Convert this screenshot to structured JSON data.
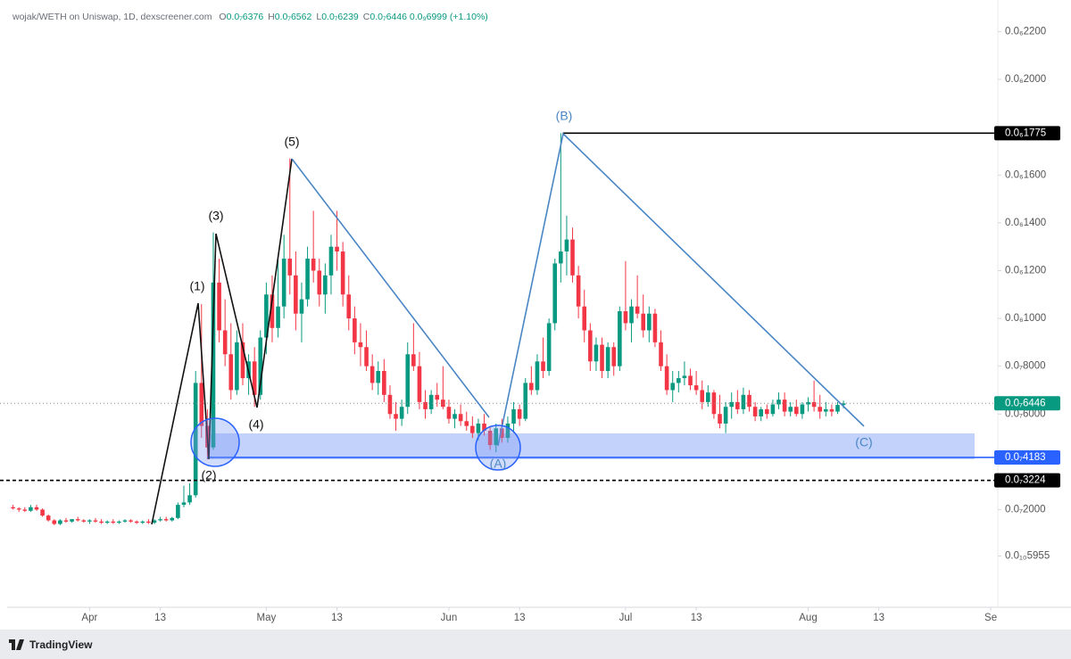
{
  "header": {
    "symbol": "wojak/WETH on Uniswap, 1D, dexscreener.com",
    "ohlc": [
      {
        "key": "O",
        "value": "0.0₇6376"
      },
      {
        "key": "H",
        "value": "0.0₇6562"
      },
      {
        "key": "L",
        "value": "0.0₇6239"
      },
      {
        "key": "C",
        "value": "0.0₇6446"
      }
    ],
    "change": "0.0₉6999 (+1.10%)"
  },
  "footer": {
    "brand": "TradingView"
  },
  "chart_data": {
    "type": "candlestick",
    "up_color": "#089981",
    "down_color": "#f23645",
    "xlim": [
      -14,
      154.2
    ],
    "xticks": [
      {
        "value": 0,
        "label": "Apr"
      },
      {
        "value": 12,
        "label": "13"
      },
      {
        "value": 30,
        "label": "May"
      },
      {
        "value": 42,
        "label": "13"
      },
      {
        "value": 61,
        "label": "Jun"
      },
      {
        "value": 73,
        "label": "13"
      },
      {
        "value": 91,
        "label": "Jul"
      },
      {
        "value": 103,
        "label": "13"
      },
      {
        "value": 122,
        "label": "Aug"
      },
      {
        "value": 134,
        "label": "13"
      },
      {
        "value": 153,
        "label": "Se"
      }
    ],
    "ylim": [
      -2.05e-08,
      2.295e-07
    ],
    "yticks": [
      {
        "value": 2.2e-07,
        "label": "0.0₆2200"
      },
      {
        "value": 2e-07,
        "label": "0.0₆2000"
      },
      {
        "value": 1.6e-07,
        "label": "0.0₆1600"
      },
      {
        "value": 1.4e-07,
        "label": "0.0₆1400"
      },
      {
        "value": 1.2e-07,
        "label": "0.0₆1200"
      },
      {
        "value": 1e-07,
        "label": "0.0₆1000"
      },
      {
        "value": 8e-08,
        "label": "0.0₇8000"
      },
      {
        "value": 6e-08,
        "label": "0.0₇6000"
      },
      {
        "value": 2e-08,
        "label": "0.0₇2000"
      },
      {
        "value": 5.955e-10,
        "label": "0.0₁₀5955"
      }
    ],
    "price_lines": [
      {
        "value": 1.775e-07,
        "label": "0.0₆1775",
        "color": "#000000",
        "style": "solid"
      },
      {
        "value": 6.446e-08,
        "label": "0.0₇6446",
        "color": "#089981",
        "style": "dotted"
      },
      {
        "value": 4.183e-08,
        "label": "0.0₇4183",
        "color": "#2962ff",
        "style": "solid"
      },
      {
        "value": 3.224e-08,
        "label": "0.0₇3224",
        "color": "#000000",
        "style": "dashed"
      }
    ],
    "annotations": {
      "w1": "(1)",
      "w2": "(2)",
      "w3": "(3)",
      "w4": "(4)",
      "w5": "(5)",
      "wA": "(A)",
      "wB": "(B)",
      "wC": "(C)"
    },
    "x": [
      -13,
      -12,
      -11,
      -10,
      -9,
      -8,
      -7,
      -6,
      -5,
      -4,
      -3,
      -2,
      -1,
      0,
      1,
      2,
      3,
      4,
      5,
      6,
      7,
      8,
      9,
      10,
      11,
      12,
      13,
      14,
      15,
      16,
      17,
      18,
      19,
      20,
      21,
      22,
      23,
      24,
      25,
      26,
      27,
      28,
      29,
      30,
      31,
      32,
      33,
      34,
      35,
      36,
      37,
      38,
      39,
      40,
      41,
      42,
      43,
      44,
      45,
      46,
      47,
      48,
      49,
      50,
      51,
      52,
      53,
      54,
      55,
      56,
      57,
      58,
      59,
      60,
      61,
      62,
      63,
      64,
      65,
      66,
      67,
      68,
      69,
      70,
      71,
      72,
      73,
      74,
      75,
      76,
      77,
      78,
      79,
      80,
      81,
      82,
      83,
      84,
      85,
      86,
      87,
      88,
      89,
      90,
      91,
      92,
      93,
      94,
      95,
      96,
      97,
      98,
      99,
      100,
      101,
      102,
      103,
      104,
      105,
      106,
      107,
      108,
      109,
      110,
      111,
      112,
      113,
      114,
      115,
      116,
      117,
      118,
      119,
      120,
      121,
      122,
      123,
      124,
      125,
      126,
      127,
      128
    ],
    "open": [
      2.1e-08,
      2.05e-08,
      2e-08,
      1.95e-08,
      2.1e-08,
      2e-08,
      1.75e-08,
      1.55e-08,
      1.4e-08,
      1.55e-08,
      1.5e-08,
      1.6e-08,
      1.55e-08,
      1.5e-08,
      1.55e-08,
      1.5e-08,
      1.45e-08,
      1.5e-08,
      1.45e-08,
      1.5e-08,
      1.55e-08,
      1.5e-08,
      1.45e-08,
      1.5e-08,
      1.45e-08,
      1.55e-08,
      1.6e-08,
      1.55e-08,
      1.65e-08,
      2.2e-08,
      2.3e-08,
      2.6e-08,
      7.3e-08,
      5.5e-08,
      4.6e-08,
      1.15e-07,
      9.5e-08,
      8.5e-08,
      7e-08,
      9e-08,
      7.5e-08,
      8.2e-08,
      6.8e-08,
      9.2e-08,
      1.1e-07,
      9.6e-08,
      1.05e-07,
      1.25e-07,
      1.18e-07,
      1.02e-07,
      1.08e-07,
      1.25e-07,
      1.2e-07,
      1.1e-07,
      1.18e-07,
      1.3e-07,
      1.28e-07,
      1.1e-07,
      1e-07,
      9e-08,
      8.8e-08,
      8e-08,
      7.3e-08,
      7.8e-08,
      6.8e-08,
      6e-08,
      5.8e-08,
      6.3e-08,
      8.5e-08,
      8e-08,
      6.5e-08,
      6.2e-08,
      6.8e-08,
      6.6e-08,
      6.3e-08,
      5.8e-08,
      6e-08,
      5.7e-08,
      5.5e-08,
      5.2e-08,
      5.6e-08,
      5.3e-08,
      4.7e-08,
      5.4e-08,
      5e-08,
      5.6e-08,
      6.2e-08,
      5.8e-08,
      7.3e-08,
      7e-08,
      8.2e-08,
      7.8e-08,
      9.8e-08,
      1.23e-07,
      1.28e-07,
      1.33e-07,
      1.18e-07,
      1.05e-07,
      9.5e-08,
      8.2e-08,
      8.9e-08,
      7.8e-08,
      8.8e-08,
      8e-08,
      1.03e-07,
      9.8e-08,
      1.05e-07,
      1.02e-07,
      9.5e-08,
      1.02e-07,
      9e-08,
      8e-08,
      7e-08,
      7.3e-08,
      7.5e-08,
      7.6e-08,
      7.2e-08,
      7e-08,
      6.5e-08,
      6.9e-08,
      6e-08,
      5.6e-08,
      6.3e-08,
      6.5e-08,
      6.2e-08,
      6.8e-08,
      6.3e-08,
      5.9e-08,
      6.2e-08,
      6e-08,
      6.4e-08,
      6.6e-08,
      6.1e-08,
      6.3e-08,
      6e-08,
      6.4e-08,
      6.5e-08,
      6.3e-08,
      6.1e-08,
      6.2e-08,
      6.1e-08,
      6.376e-08
    ],
    "high": [
      2.2e-08,
      2.1e-08,
      2.1e-08,
      2.2e-08,
      2.2e-08,
      2.05e-08,
      1.8e-08,
      1.6e-08,
      1.6e-08,
      1.65e-08,
      1.6e-08,
      1.7e-08,
      1.6e-08,
      1.6e-08,
      1.65e-08,
      1.6e-08,
      1.55e-08,
      1.6e-08,
      1.55e-08,
      1.6e-08,
      1.6e-08,
      1.55e-08,
      1.55e-08,
      1.6e-08,
      1.6e-08,
      1.7e-08,
      1.7e-08,
      1.7e-08,
      2.3e-08,
      3e-08,
      3.1e-08,
      7.8e-08,
      1.06e-07,
      6.2e-08,
      1.36e-07,
      1.25e-07,
      1.08e-07,
      9.8e-08,
      9.5e-08,
      9.8e-08,
      8.5e-08,
      8.8e-08,
      9.5e-08,
      1.15e-07,
      1.18e-07,
      1.25e-07,
      1.35e-07,
      1.67e-07,
      1.28e-07,
      1.15e-07,
      1.3e-07,
      1.45e-07,
      1.25e-07,
      1.23e-07,
      1.35e-07,
      1.45e-07,
      1.32e-07,
      1.18e-07,
      1.05e-07,
      9.8e-08,
      9.5e-08,
      8.5e-08,
      8.2e-08,
      8.3e-08,
      7.2e-08,
      6.5e-08,
      6.6e-08,
      9e-08,
      9.8e-08,
      8.6e-08,
      7e-08,
      7e-08,
      7.3e-08,
      8e-08,
      6.6e-08,
      6.2e-08,
      6.4e-08,
      6.1e-08,
      5.9e-08,
      5.8e-08,
      6e-08,
      5.5e-08,
      5.6e-08,
      5.8e-08,
      5.9e-08,
      6.5e-08,
      6.4e-08,
      7.5e-08,
      8e-08,
      8.5e-08,
      9.2e-08,
      1e-07,
      1.25e-07,
      1.775e-07,
      1.43e-07,
      1.38e-07,
      1.22e-07,
      1.12e-07,
      9.8e-08,
      9.2e-08,
      9.2e-08,
      9e-08,
      9e-08,
      1.05e-07,
      1.24e-07,
      1.08e-07,
      1.18e-07,
      1.1e-07,
      1.05e-07,
      1.04e-07,
      9.5e-08,
      8.5e-08,
      7.8e-08,
      7.8e-08,
      8.2e-08,
      7.9e-08,
      7.8e-08,
      7.4e-08,
      7.2e-08,
      7e-08,
      6.8e-08,
      6.5e-08,
      6.9e-08,
      7e-08,
      7.1e-08,
      7e-08,
      6.5e-08,
      6.3e-08,
      6.4e-08,
      6.6e-08,
      6.9e-08,
      6.9e-08,
      6.5e-08,
      6.6e-08,
      6.5e-08,
      6.7e-08,
      7.4e-08,
      6.8e-08,
      6.5e-08,
      6.4e-08,
      6.5e-08,
      6.562e-08
    ],
    "low": [
      2e-08,
      1.9e-08,
      1.9e-08,
      1.9e-08,
      1.95e-08,
      1.7e-08,
      1.5e-08,
      1.35e-08,
      1.35e-08,
      1.45e-08,
      1.45e-08,
      1.5e-08,
      1.45e-08,
      1.4e-08,
      1.45e-08,
      1.4e-08,
      1.4e-08,
      1.4e-08,
      1.4e-08,
      1.45e-08,
      1.45e-08,
      1.4e-08,
      1.4e-08,
      1.4e-08,
      1.4e-08,
      1.5e-08,
      1.5e-08,
      1.5e-08,
      1.6e-08,
      2.1e-08,
      2.2e-08,
      2.5e-08,
      5e-08,
      4.1e-08,
      4.5e-08,
      9e-08,
      8e-08,
      6.6e-08,
      6.8e-08,
      7.2e-08,
      6.8e-08,
      6.3e-08,
      6.6e-08,
      8.5e-08,
      9e-08,
      9.2e-08,
      1e-07,
      1.1e-07,
      9.5e-08,
      9e-08,
      1.05e-07,
      1.15e-07,
      1.05e-07,
      1.02e-07,
      1.1e-07,
      1.2e-07,
      1.05e-07,
      9.5e-08,
      8.5e-08,
      8e-08,
      7.8e-08,
      7e-08,
      6.8e-08,
      6.5e-08,
      5.8e-08,
      5.3e-08,
      5.5e-08,
      6e-08,
      7.8e-08,
      6.2e-08,
      5.8e-08,
      6e-08,
      6.3e-08,
      6.2e-08,
      5.6e-08,
      5.4e-08,
      5.5e-08,
      5.3e-08,
      5e-08,
      4.9e-08,
      5.1e-08,
      4.5e-08,
      4.4e-08,
      4.8e-08,
      4.8e-08,
      5.2e-08,
      5.5e-08,
      5.7e-08,
      6.8e-08,
      6.8e-08,
      7.5e-08,
      7.6e-08,
      9.5e-08,
      1.15e-07,
      1.18e-07,
      1.15e-07,
      1e-07,
      9e-08,
      7.8e-08,
      7.8e-08,
      7.5e-08,
      7.5e-08,
      7.6e-08,
      7.8e-08,
      9.5e-08,
      9e-08,
      1e-07,
      9.2e-08,
      9e-08,
      8.8e-08,
      7.8e-08,
      6.8e-08,
      6.5e-08,
      6.9e-08,
      7.2e-08,
      7e-08,
      6.8e-08,
      6.2e-08,
      6.3e-08,
      5.8e-08,
      5.4e-08,
      5.2e-08,
      5.8e-08,
      6e-08,
      6e-08,
      6.1e-08,
      5.7e-08,
      5.7e-08,
      5.8e-08,
      5.9e-08,
      6.2e-08,
      5.9e-08,
      5.9e-08,
      5.9e-08,
      5.8e-08,
      6.1e-08,
      6.1e-08,
      5.8e-08,
      5.9e-08,
      5.9e-08,
      6e-08,
      6.239e-08
    ],
    "close": [
      2.05e-08,
      2e-08,
      1.95e-08,
      2.1e-08,
      2e-08,
      1.75e-08,
      1.55e-08,
      1.4e-08,
      1.55e-08,
      1.5e-08,
      1.6e-08,
      1.55e-08,
      1.5e-08,
      1.55e-08,
      1.5e-08,
      1.45e-08,
      1.5e-08,
      1.45e-08,
      1.5e-08,
      1.55e-08,
      1.5e-08,
      1.45e-08,
      1.5e-08,
      1.45e-08,
      1.55e-08,
      1.6e-08,
      1.55e-08,
      1.65e-08,
      2.2e-08,
      2.3e-08,
      2.6e-08,
      7.3e-08,
      5.5e-08,
      4.6e-08,
      1.15e-07,
      9.5e-08,
      8.5e-08,
      7e-08,
      9e-08,
      7.5e-08,
      8.2e-08,
      6.8e-08,
      9.2e-08,
      1.1e-07,
      9.6e-08,
      1.05e-07,
      1.25e-07,
      1.18e-07,
      1.02e-07,
      1.08e-07,
      1.25e-07,
      1.2e-07,
      1.1e-07,
      1.18e-07,
      1.3e-07,
      1.28e-07,
      1.1e-07,
      1e-07,
      9e-08,
      8.8e-08,
      8e-08,
      7.3e-08,
      7.8e-08,
      6.8e-08,
      6e-08,
      5.8e-08,
      6.3e-08,
      8.5e-08,
      8e-08,
      6.5e-08,
      6.2e-08,
      6.8e-08,
      6.6e-08,
      6.3e-08,
      5.8e-08,
      6e-08,
      5.7e-08,
      5.5e-08,
      5.2e-08,
      5.6e-08,
      5.3e-08,
      4.7e-08,
      5.4e-08,
      5e-08,
      5.6e-08,
      6.2e-08,
      5.8e-08,
      7.3e-08,
      7e-08,
      8.2e-08,
      7.8e-08,
      9.8e-08,
      1.23e-07,
      1.28e-07,
      1.33e-07,
      1.18e-07,
      1.05e-07,
      9.5e-08,
      8.2e-08,
      8.9e-08,
      7.8e-08,
      8.8e-08,
      8e-08,
      1.03e-07,
      9.8e-08,
      1.05e-07,
      1.02e-07,
      9.5e-08,
      1.02e-07,
      9e-08,
      8e-08,
      7e-08,
      7.3e-08,
      7.5e-08,
      7.6e-08,
      7.2e-08,
      7e-08,
      6.5e-08,
      6.9e-08,
      6e-08,
      5.6e-08,
      6.3e-08,
      6.5e-08,
      6.2e-08,
      6.8e-08,
      6.3e-08,
      5.9e-08,
      6.2e-08,
      6e-08,
      6.4e-08,
      6.6e-08,
      6.1e-08,
      6.3e-08,
      6e-08,
      6.4e-08,
      6.5e-08,
      6.3e-08,
      6.1e-08,
      6.2e-08,
      6.1e-08,
      6.38e-08,
      6.446e-08
    ]
  }
}
